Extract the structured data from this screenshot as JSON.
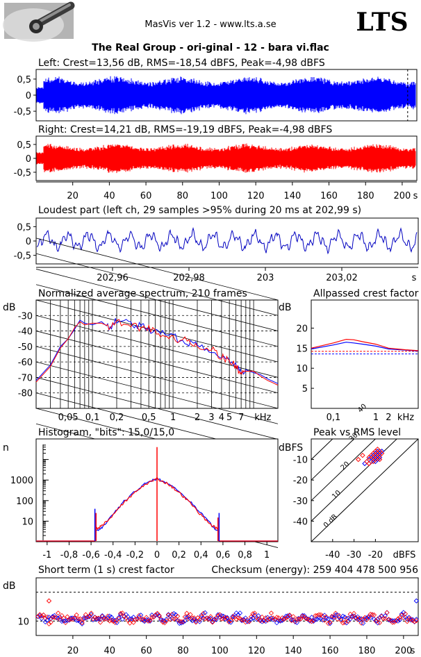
{
  "header": {
    "app_title": "MasVis ver 1.2 - www.lts.a.se",
    "brand": "LTS",
    "file_title": "The Real Group - ori-ginal - 12 - bara vi.flac"
  },
  "chart_data": [
    {
      "id": "left",
      "type": "line",
      "title": "Left: Crest=13,56 dB, RMS=-18,54 dBFS, Peak=-4,98 dBFS",
      "series": [
        {
          "name": "",
          "color": "#0000ff",
          "envelope": 0.62
        }
      ],
      "yticks": [
        "0,5",
        "0",
        "-0,5"
      ],
      "ylim": [
        -0.8,
        0.8
      ],
      "xlim": [
        0,
        208
      ],
      "marker_x": 202.99
    },
    {
      "id": "right",
      "type": "line",
      "title": "Right: Crest=14,21 dB, RMS=-19,19 dBFS, Peak=-4,98 dBFS",
      "series": [
        {
          "name": "",
          "color": "#ff0000",
          "envelope": 0.55
        }
      ],
      "yticks": [
        "0,5",
        "0",
        "-0,5"
      ],
      "ylim": [
        -0.8,
        0.8
      ],
      "xlim": [
        0,
        208
      ],
      "xticks": [
        "20",
        "40",
        "60",
        "80",
        "100",
        "120",
        "140",
        "160",
        "180",
        "200"
      ],
      "xunit": "s"
    },
    {
      "id": "loudest",
      "type": "line",
      "title": "Loudest part (left  ch, 29 samples >95% during 20 ms at 202,99 s)",
      "series": [
        {
          "name": "",
          "color": "#0000c0"
        }
      ],
      "yticks": [
        "0,5",
        "0",
        "-0,5"
      ],
      "ylim": [
        -0.8,
        0.8
      ],
      "xlim": [
        202.94,
        203.04
      ],
      "xticks": [
        "202,96",
        "202,98",
        "203",
        "203,02"
      ],
      "xunit": "s"
    },
    {
      "id": "spectrum",
      "type": "line",
      "title": "Normalized average spectrum, 210 frames",
      "ylabel": "dB",
      "yticks": [
        "-30",
        "-40",
        "-50",
        "-60",
        "-70",
        "-80"
      ],
      "ylim": [
        -90,
        -20
      ],
      "xticks": [
        "0,05",
        "0,1",
        "0,2",
        "0,5",
        "1",
        "2",
        "3",
        "4",
        "5",
        "7"
      ],
      "xunit": "kHz",
      "xscale": "log",
      "xlim": [
        0.02,
        20
      ],
      "grid": true,
      "series": [
        {
          "name": "",
          "color": "#0000ff",
          "points": [
            [
              0.02,
              -72
            ],
            [
              0.03,
              -62
            ],
            [
              0.04,
              -50
            ],
            [
              0.05,
              -45
            ],
            [
              0.06,
              -39
            ],
            [
              0.07,
              -33
            ],
            [
              0.08,
              -35
            ],
            [
              0.1,
              -36
            ],
            [
              0.13,
              -34
            ],
            [
              0.16,
              -38
            ],
            [
              0.2,
              -33
            ],
            [
              0.3,
              -35
            ],
            [
              0.4,
              -37
            ],
            [
              0.5,
              -39
            ],
            [
              0.7,
              -41
            ],
            [
              1,
              -44
            ],
            [
              1.5,
              -47
            ],
            [
              2,
              -49
            ],
            [
              3,
              -52
            ],
            [
              4,
              -56
            ],
            [
              5,
              -60
            ],
            [
              6,
              -62
            ],
            [
              7,
              -66
            ],
            [
              8,
              -65
            ],
            [
              10,
              -67
            ],
            [
              12,
              -68
            ],
            [
              15,
              -71
            ],
            [
              20,
              -74
            ]
          ]
        },
        {
          "name": "",
          "color": "#ff0000",
          "points": [
            [
              0.02,
              -73
            ],
            [
              0.03,
              -63
            ],
            [
              0.04,
              -51
            ],
            [
              0.05,
              -45
            ],
            [
              0.06,
              -38
            ],
            [
              0.07,
              -34
            ],
            [
              0.08,
              -36
            ],
            [
              0.1,
              -35
            ],
            [
              0.13,
              -35
            ],
            [
              0.16,
              -37
            ],
            [
              0.2,
              -34
            ],
            [
              0.3,
              -36
            ],
            [
              0.4,
              -38
            ],
            [
              0.5,
              -38
            ],
            [
              0.7,
              -42
            ],
            [
              1,
              -45
            ],
            [
              1.5,
              -46
            ],
            [
              2,
              -50
            ],
            [
              3,
              -51
            ],
            [
              4,
              -57
            ],
            [
              5,
              -59
            ],
            [
              6,
              -63
            ],
            [
              7,
              -67
            ],
            [
              8,
              -66
            ],
            [
              10,
              -66
            ],
            [
              12,
              -69
            ],
            [
              15,
              -72
            ],
            [
              20,
              -75
            ]
          ]
        }
      ]
    },
    {
      "id": "allpass",
      "type": "line",
      "title": "Allpassed crest factor",
      "ylabel": "dB",
      "yticks": [
        "20",
        "15",
        "10",
        "5"
      ],
      "ylim": [
        0,
        27
      ],
      "xticks": [
        "0,1",
        "1",
        "2"
      ],
      "xunit": "kHz",
      "xscale": "log",
      "xlim": [
        0.03,
        10
      ],
      "series": [
        {
          "name": "",
          "color": "#0000ff",
          "points": [
            [
              0.03,
              14.8
            ],
            [
              0.1,
              15.8
            ],
            [
              0.2,
              16.5
            ],
            [
              0.3,
              16.3
            ],
            [
              0.5,
              16
            ],
            [
              1,
              15.5
            ],
            [
              2,
              14.8
            ],
            [
              5,
              14.5
            ],
            [
              10,
              14.3
            ]
          ]
        },
        {
          "name": "",
          "color": "#ff0000",
          "points": [
            [
              0.03,
              15
            ],
            [
              0.1,
              16.3
            ],
            [
              0.2,
              17.2
            ],
            [
              0.3,
              17.1
            ],
            [
              0.5,
              16.6
            ],
            [
              1,
              16
            ],
            [
              2,
              15
            ],
            [
              5,
              14.6
            ],
            [
              10,
              14.4
            ]
          ]
        }
      ],
      "reference_lines": [
        {
          "color": "#0000ff",
          "y": 13.56
        },
        {
          "color": "#ff0000",
          "y": 14.21
        }
      ]
    },
    {
      "id": "histogram",
      "type": "line",
      "title": "Histogram, \"bits\": 15,0/15,0",
      "ylabel": "n",
      "yscale": "log",
      "yticks": [
        "1000",
        "100",
        "10"
      ],
      "ylim": [
        1,
        100000
      ],
      "xticks": [
        "-1",
        "-0,8",
        "-0,6",
        "-0,4",
        "-0,2",
        "0",
        "0,2",
        "0,4",
        "0,6",
        "0,8",
        "1"
      ],
      "xlim": [
        -1.1,
        1.1
      ],
      "series": [
        {
          "name": "",
          "color": "#0000ff",
          "points": [
            [
              -0.565,
              3
            ],
            [
              -0.5,
              5
            ],
            [
              -0.4,
              22
            ],
            [
              -0.3,
              90
            ],
            [
              -0.2,
              280
            ],
            [
              -0.1,
              700
            ],
            [
              0,
              1200
            ],
            [
              0.1,
              700
            ],
            [
              0.2,
              280
            ],
            [
              0.3,
              90
            ],
            [
              0.4,
              25
            ],
            [
              0.5,
              6
            ],
            [
              0.565,
              3
            ]
          ]
        },
        {
          "name": "",
          "color": "#ff0000",
          "points": [
            [
              -0.565,
              4
            ],
            [
              -0.5,
              6
            ],
            [
              -0.4,
              20
            ],
            [
              -0.3,
              80
            ],
            [
              -0.2,
              250
            ],
            [
              -0.1,
              650
            ],
            [
              0,
              1150
            ],
            [
              0.1,
              650
            ],
            [
              0.2,
              250
            ],
            [
              0.3,
              80
            ],
            [
              0.4,
              20
            ],
            [
              0.5,
              6
            ],
            [
              0.565,
              4
            ]
          ]
        }
      ],
      "spikes": [
        {
          "color": "#ff0000",
          "x": 0,
          "y": 40000
        },
        {
          "color": "#0000ff",
          "x": -0.565,
          "y": 40
        },
        {
          "color": "#0000ff",
          "x": 0.565,
          "y": 25
        },
        {
          "color": "#ff0000",
          "x": -0.555,
          "y": 25
        },
        {
          "color": "#ff0000",
          "x": 0.555,
          "y": 15
        }
      ]
    },
    {
      "id": "peak_rms",
      "type": "scatter",
      "title": "Peak vs RMS level",
      "ylabel": "dBFS",
      "xlabel": "dBFS",
      "yticks": [
        "-10",
        "-20",
        "-30",
        "-40"
      ],
      "xticks": [
        "-40",
        "-30",
        "-20"
      ],
      "xlim": [
        -50,
        0
      ],
      "ylim": [
        -50,
        0
      ],
      "diagonal_labels": [
        "40",
        "30",
        "20",
        "10",
        "0 dB"
      ],
      "series": [
        {
          "name": "",
          "color": "#0000ff",
          "points": [
            [
              -23,
              -10
            ],
            [
              -22,
              -9
            ],
            [
              -21,
              -8
            ],
            [
              -20,
              -7
            ],
            [
              -19,
              -6
            ],
            [
              -22,
              -11
            ],
            [
              -21,
              -10
            ],
            [
              -20,
              -9
            ],
            [
              -19,
              -8
            ],
            [
              -18,
              -7
            ],
            [
              -17,
              -6
            ],
            [
              -20,
              -11
            ],
            [
              -19,
              -10
            ],
            [
              -18,
              -9
            ],
            [
              -25,
              -12
            ]
          ]
        },
        {
          "name": "",
          "color": "#ff0000",
          "points": [
            [
              -24,
              -11
            ],
            [
              -23,
              -9
            ],
            [
              -21,
              -7
            ],
            [
              -20,
              -6
            ],
            [
              -19,
              -5
            ],
            [
              -18,
              -6
            ],
            [
              -22,
              -8
            ],
            [
              -21,
              -9
            ],
            [
              -20,
              -8
            ],
            [
              -19,
              -7
            ],
            [
              -18,
              -8
            ],
            [
              -17,
              -7
            ],
            [
              -23,
              -12
            ],
            [
              -21,
              -11
            ],
            [
              -20,
              -10
            ],
            [
              -19,
              -9
            ],
            [
              -18,
              -10
            ],
            [
              -28,
              -10
            ],
            [
              -26,
              -8
            ]
          ]
        }
      ]
    },
    {
      "id": "short_crest",
      "type": "scatter",
      "title": "Short term (1 s) crest factor",
      "checksum": "Checksum (energy):   259 404 478 500 956",
      "ylabel": "dB",
      "yticks": [
        "10"
      ],
      "ylim": [
        5,
        25
      ],
      "xticks": [
        "20",
        "40",
        "60",
        "80",
        "100",
        "120",
        "140",
        "160",
        "180",
        "200"
      ],
      "xunit": "s",
      "xlim": [
        0,
        208
      ],
      "reference_lines": [
        {
          "y": 10
        },
        {
          "y": 20
        }
      ],
      "outliers": [
        {
          "color": "#ff0000",
          "x": 7,
          "y": 17
        },
        {
          "color": "#0000ff",
          "x": 207,
          "y": 17
        }
      ]
    }
  ]
}
